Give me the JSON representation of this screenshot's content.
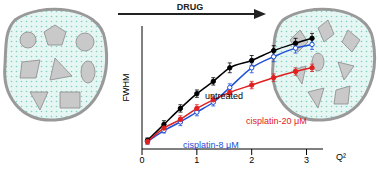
{
  "chart_data": {
    "type": "line",
    "annotations": [
      "DRUG"
    ],
    "x_label": "Q²",
    "y_label": "FWHM",
    "x": [
      0.1,
      0.4,
      0.7,
      1.0,
      1.3,
      1.6,
      2.0,
      2.4,
      2.8,
      3.1
    ],
    "xlim": [
      0,
      3.3
    ],
    "xticks": [
      0,
      1,
      2,
      3
    ],
    "ylim": [
      0,
      1
    ],
    "tick_labels": "x",
    "grid": false,
    "series": [
      {
        "name": "untreated",
        "color": "#000000",
        "marker": "filled",
        "values": [
          0.07,
          0.2,
          0.33,
          0.45,
          0.55,
          0.66,
          0.72,
          0.8,
          0.86,
          0.9
        ],
        "error": [
          0.02,
          0.03,
          0.03,
          0.03,
          0.03,
          0.04,
          0.04,
          0.04,
          0.04,
          0.04
        ]
      },
      {
        "name": "cisplatin-8 μM",
        "color": "#1f4fd8",
        "marker": "open",
        "values": [
          0.06,
          0.15,
          0.22,
          0.3,
          0.38,
          0.5,
          0.66,
          0.75,
          0.82,
          0.85
        ],
        "error": [
          0.02,
          0.02,
          0.03,
          0.03,
          0.03,
          0.03,
          0.04,
          0.04,
          0.04,
          0.04
        ]
      },
      {
        "name": "cisplatin-20 μM",
        "color": "#e02020",
        "marker": "filled",
        "values": [
          0.06,
          0.17,
          0.24,
          0.33,
          0.4,
          0.46,
          0.52,
          0.58,
          0.63,
          0.66
        ],
        "error": [
          0.02,
          0.02,
          0.03,
          0.03,
          0.03,
          0.03,
          0.03,
          0.03,
          0.03,
          0.03
        ]
      }
    ]
  }
}
